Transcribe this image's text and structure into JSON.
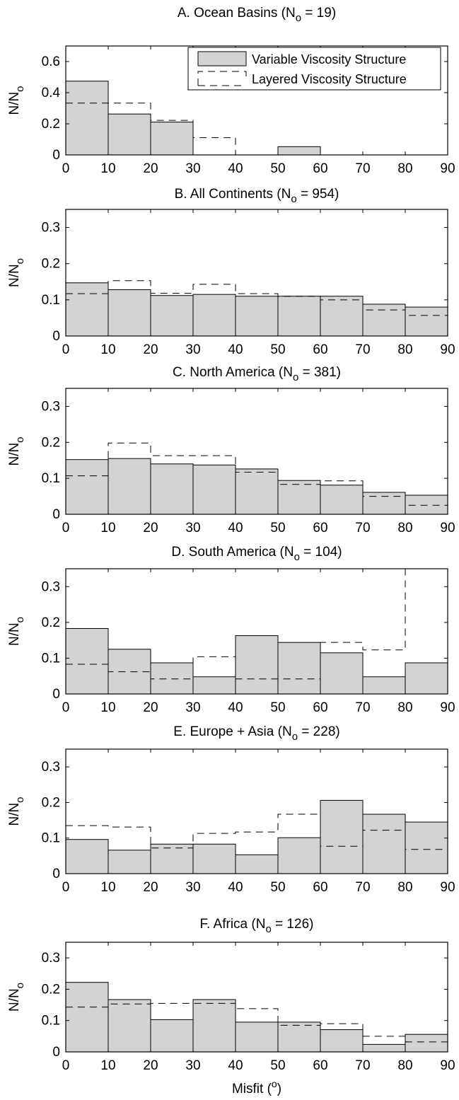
{
  "figure": {
    "xlabel_main": "Misfit (",
    "xlabel_sup": "o",
    "xlabel_tail": ")"
  },
  "chart_data": [
    {
      "type": "bar",
      "id": "A",
      "title": "A. Ocean Basins (N",
      "title_sub": "o",
      "title_tail": " = 19)",
      "ylabel": "N/N",
      "ylabel_sub": "o",
      "x_bins": [
        0,
        10,
        20,
        30,
        40,
        50,
        60,
        70,
        80,
        90
      ],
      "xlim": [
        0,
        90
      ],
      "ylim": [
        0,
        0.7
      ],
      "yticks": [
        0,
        0.2,
        0.4,
        0.6
      ],
      "xticks": [
        0,
        10,
        20,
        30,
        40,
        50,
        60,
        70,
        80,
        90
      ],
      "legend_position": "top-right",
      "series": [
        {
          "name": "Variable Viscosity Structure",
          "style": "bar",
          "values": [
            0.474,
            0.263,
            0.211,
            0,
            0,
            0.053,
            0,
            0,
            0
          ]
        },
        {
          "name": "Layered Viscosity Structure",
          "style": "dashed-step",
          "values": [
            0.333,
            0.333,
            0.222,
            0.111,
            0,
            0,
            0,
            0,
            0
          ]
        }
      ]
    },
    {
      "type": "bar",
      "id": "B",
      "title": "B. All Continents (N",
      "title_sub": "o",
      "title_tail": " = 954)",
      "ylabel": "N/N",
      "ylabel_sub": "o",
      "x_bins": [
        0,
        10,
        20,
        30,
        40,
        50,
        60,
        70,
        80,
        90
      ],
      "xlim": [
        0,
        90
      ],
      "ylim": [
        0,
        0.35
      ],
      "yticks": [
        0,
        0.1,
        0.2,
        0.3
      ],
      "xticks": [
        0,
        10,
        20,
        30,
        40,
        50,
        60,
        70,
        80,
        90
      ],
      "series": [
        {
          "name": "Variable Viscosity Structure",
          "style": "bar",
          "values": [
            0.147,
            0.128,
            0.112,
            0.115,
            0.11,
            0.11,
            0.11,
            0.088,
            0.08
          ]
        },
        {
          "name": "Layered Viscosity Structure",
          "style": "dashed-step",
          "values": [
            0.117,
            0.153,
            0.118,
            0.143,
            0.117,
            0.11,
            0.1,
            0.072,
            0.057
          ]
        }
      ]
    },
    {
      "type": "bar",
      "id": "C",
      "title": "C. North America (N",
      "title_sub": "o",
      "title_tail": " = 381)",
      "ylabel": "N/N",
      "ylabel_sub": "o",
      "x_bins": [
        0,
        10,
        20,
        30,
        40,
        50,
        60,
        70,
        80,
        90
      ],
      "xlim": [
        0,
        90
      ],
      "ylim": [
        0,
        0.35
      ],
      "yticks": [
        0,
        0.1,
        0.2,
        0.3
      ],
      "xticks": [
        0,
        10,
        20,
        30,
        40,
        50,
        60,
        70,
        80,
        90
      ],
      "series": [
        {
          "name": "Variable Viscosity Structure",
          "style": "bar",
          "values": [
            0.152,
            0.155,
            0.14,
            0.137,
            0.126,
            0.094,
            0.081,
            0.061,
            0.053
          ]
        },
        {
          "name": "Layered Viscosity Structure",
          "style": "dashed-step",
          "values": [
            0.107,
            0.198,
            0.163,
            0.163,
            0.117,
            0.083,
            0.093,
            0.05,
            0.025
          ]
        }
      ]
    },
    {
      "type": "bar",
      "id": "D",
      "title": "D. South America (N",
      "title_sub": "o",
      "title_tail": " = 104)",
      "ylabel": "N/N",
      "ylabel_sub": "o",
      "x_bins": [
        0,
        10,
        20,
        30,
        40,
        50,
        60,
        70,
        80,
        90
      ],
      "xlim": [
        0,
        90
      ],
      "ylim": [
        0,
        0.35
      ],
      "yticks": [
        0,
        0.1,
        0.2,
        0.3
      ],
      "xticks": [
        0,
        10,
        20,
        30,
        40,
        50,
        60,
        70,
        80,
        90
      ],
      "series": [
        {
          "name": "Variable Viscosity Structure",
          "style": "bar",
          "values": [
            0.183,
            0.125,
            0.087,
            0.048,
            0.163,
            0.144,
            0.115,
            0.048,
            0.087
          ]
        },
        {
          "name": "Layered Viscosity Structure",
          "style": "dashed-step",
          "values": [
            0.083,
            0.062,
            0.042,
            0.104,
            0.042,
            0.042,
            0.144,
            0.123,
            0.35
          ]
        }
      ]
    },
    {
      "type": "bar",
      "id": "E",
      "title": "E. Europe + Asia (N",
      "title_sub": "o",
      "title_tail": " = 228)",
      "ylabel": "N/N",
      "ylabel_sub": "o",
      "x_bins": [
        0,
        10,
        20,
        30,
        40,
        50,
        60,
        70,
        80,
        90
      ],
      "xlim": [
        0,
        90
      ],
      "ylim": [
        0,
        0.35
      ],
      "yticks": [
        0,
        0.1,
        0.2,
        0.3
      ],
      "xticks": [
        0,
        10,
        20,
        30,
        40,
        50,
        60,
        70,
        80,
        90
      ],
      "series": [
        {
          "name": "Variable Viscosity Structure",
          "style": "bar",
          "values": [
            0.096,
            0.066,
            0.083,
            0.083,
            0.053,
            0.101,
            0.206,
            0.167,
            0.145
          ]
        },
        {
          "name": "Layered Viscosity Structure",
          "style": "dashed-step",
          "values": [
            0.135,
            0.131,
            0.072,
            0.113,
            0.117,
            0.167,
            0.077,
            0.122,
            0.068
          ]
        }
      ]
    },
    {
      "type": "bar",
      "id": "F",
      "title": "F. Africa (N",
      "title_sub": "o",
      "title_tail": " = 126)",
      "ylabel": "N/N",
      "ylabel_sub": "o",
      "x_bins": [
        0,
        10,
        20,
        30,
        40,
        50,
        60,
        70,
        80,
        90
      ],
      "xlim": [
        0,
        90
      ],
      "ylim": [
        0,
        0.35
      ],
      "yticks": [
        0,
        0.1,
        0.2,
        0.3
      ],
      "xticks": [
        0,
        10,
        20,
        30,
        40,
        50,
        60,
        70,
        80,
        90
      ],
      "series": [
        {
          "name": "Variable Viscosity Structure",
          "style": "bar",
          "values": [
            0.222,
            0.167,
            0.103,
            0.167,
            0.095,
            0.095,
            0.071,
            0.024,
            0.056
          ]
        },
        {
          "name": "Layered Viscosity Structure",
          "style": "dashed-step",
          "values": [
            0.143,
            0.153,
            0.155,
            0.155,
            0.138,
            0.085,
            0.09,
            0.05,
            0.032
          ]
        }
      ]
    }
  ]
}
